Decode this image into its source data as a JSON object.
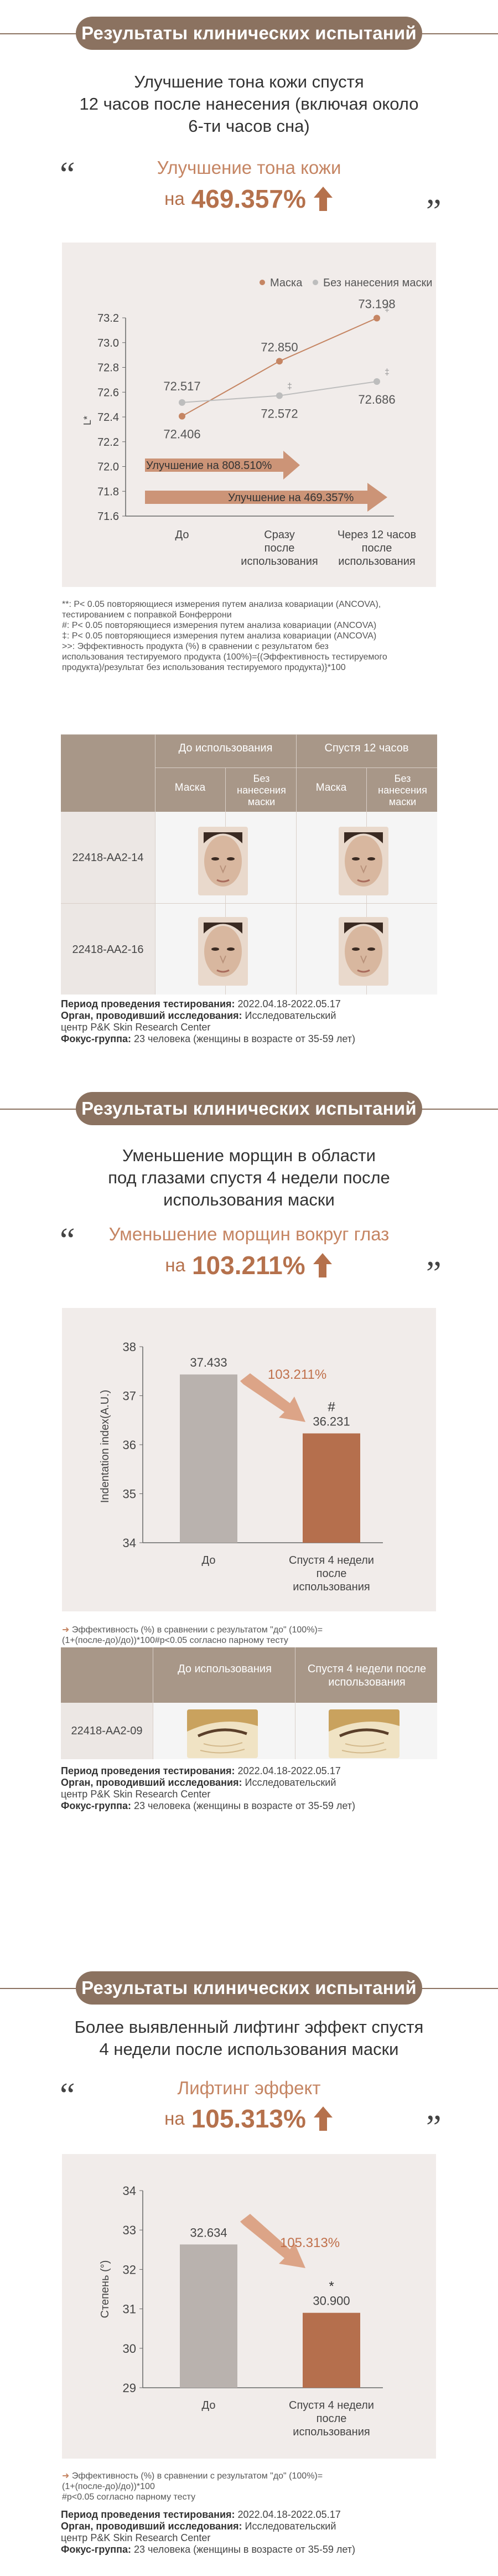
{
  "sections": [
    {
      "banner": "Результаты клинических испытаний",
      "subtitle": [
        "Улучшение тона кожи спустя",
        "12 часов после нанесения (включая около",
        "6-ти часов сна)"
      ],
      "highlight_label": "Улучшение тона кожи",
      "highlight_prefix": "на",
      "highlight_value": "469.357%"
    },
    {
      "banner": "Результаты клинических испытаний",
      "subtitle": [
        "Уменьшение морщин в области",
        "под глазами спустя 4 недели после",
        "использования маски"
      ],
      "highlight_label": "Уменьшение морщин вокруг глаз",
      "highlight_prefix": "на",
      "highlight_value": "103.211%"
    },
    {
      "banner": "Результаты клинических испытаний",
      "subtitle": [
        "Более выявленный лифтинг эффект спустя",
        "4 недели после использования маски"
      ],
      "highlight_label": "Лифтинг эффект",
      "highlight_prefix": "на",
      "highlight_value": "105.313%"
    }
  ],
  "quote_open": "“",
  "quote_close": "”",
  "chart_data": [
    {
      "type": "line",
      "legend": [
        "Маска",
        "Без нанесения маски"
      ],
      "legend_position": "top-right",
      "ylabel": "L*",
      "ylim": [
        71.6,
        73.2
      ],
      "yticks": [
        "73.2",
        "73.0",
        "72.8",
        "72.6",
        "72.4",
        "72.2",
        "72.0",
        "71.8",
        "71.6"
      ],
      "categories": [
        "До",
        "Сразу после использования",
        "Через 12 часов после использования"
      ],
      "category_lines": [
        [
          "До"
        ],
        [
          "Сразу",
          "после",
          "использования"
        ],
        [
          "Через 12 часов",
          "после",
          "использования"
        ]
      ],
      "series": [
        {
          "name": "Маска",
          "values": [
            72.406,
            72.85,
            73.198
          ],
          "labels": [
            "72.406",
            "72.850",
            "73.198"
          ],
          "color": "#c58563",
          "markers": [
            "",
            "",
            "‡"
          ]
        },
        {
          "name": "Без нанесения маски",
          "values": [
            72.517,
            72.572,
            72.686
          ],
          "labels": [
            "72.517",
            "72.572",
            "72.686"
          ],
          "color": "#bdbdbd",
          "markers": [
            "",
            "‡",
            "‡"
          ]
        }
      ],
      "annotations": [
        "Улучшение на 808.510%",
        "Улучшение на 469.357%"
      ],
      "grid": false
    },
    {
      "type": "bar",
      "ylabel": "Indentation index(A.U.)",
      "ylim": [
        34,
        38
      ],
      "yticks": [
        "38",
        "37",
        "36",
        "35",
        "34"
      ],
      "categories": [
        "До",
        "Спустя 4 недели после использования"
      ],
      "category_lines": [
        [
          "До"
        ],
        [
          "Спустя 4 недели",
          "после",
          "использования"
        ]
      ],
      "values": [
        37.433,
        36.231
      ],
      "labels": [
        "37.433",
        "36.231"
      ],
      "colors": [
        "#b9b2ae",
        "#b56f4d"
      ],
      "markers": [
        "",
        "#"
      ],
      "annotation": "103.211%",
      "grid": false
    },
    {
      "type": "bar",
      "ylabel": "Степень (°)",
      "ylim": [
        29,
        34
      ],
      "yticks": [
        "34",
        "33",
        "32",
        "31",
        "30",
        "29"
      ],
      "categories": [
        "До",
        "Спустя 4 недели после использования"
      ],
      "category_lines": [
        [
          "До"
        ],
        [
          "Спустя 4 недели",
          "после",
          "использования"
        ]
      ],
      "values": [
        32.634,
        30.9
      ],
      "labels": [
        "32.634",
        "30.900"
      ],
      "colors": [
        "#b9b2ae",
        "#b56f4d"
      ],
      "markers": [
        "",
        "*"
      ],
      "annotation": "105.313%",
      "grid": false
    }
  ],
  "notes1": [
    "**: P< 0.05 повторяющиеся измерения путем анализа ковариации (ANCOVA),",
    "тестированием с поправкой Бонферрони",
    "#: P< 0.05 повторяющиеся измерения путем анализа ковариации (ANCOVA)",
    "‡: P< 0.05 повторяющиеся измерения путем анализа ковариации (ANCOVA)",
    ">>: Эффективность продукта (%) в сравнении с результатом без",
    "использования тестируемого продукта (100%)={(Эффективность тестируемого",
    "продукта)/результат без использования тестируемого продукта)}*100"
  ],
  "notes2": [
    "Эффективность (%) в сравнении с результатом \"до\" (100%)=",
    "(1+(после-до)/до))*100#p<0.05 согласно парному тесту"
  ],
  "notes3": [
    "Эффективность (%) в сравнении с результатом \"до\" (100%)=",
    "(1+(после-до)/до))*100",
    "#p<0.05 согласно парному тесту"
  ],
  "table1": {
    "header_top": [
      "До использования",
      "Спустя 12 часов"
    ],
    "header_sub": [
      "Маска",
      "Без нанесения маски",
      "Маска",
      "Без нанесения маски"
    ],
    "rows": [
      "22418-AA2-14",
      "22418-AA2-16"
    ]
  },
  "table2": {
    "header": [
      "До использования",
      "Спустя 4 недели после использования"
    ],
    "rows": [
      "22418-AA2-09"
    ]
  },
  "meta_labels": {
    "period": "Период проведения тестирования:",
    "org": "Орган, проводивший исследования:",
    "focus": "Фокус-группа:"
  },
  "meta": {
    "period": "2022.04.18-2022.05.17",
    "org1": "Исследовательский",
    "org2": "центр P&K Skin Research Center",
    "focus": "23 человека (женщины в возрасте от 35-59 лет)"
  },
  "colors": {
    "brown": "#8b7260",
    "accent": "#c58563",
    "bar_after": "#b56f4d",
    "bar_before": "#b9b2ae",
    "gray": "#bdbdbd",
    "chart_bg": "#f1ecea"
  }
}
